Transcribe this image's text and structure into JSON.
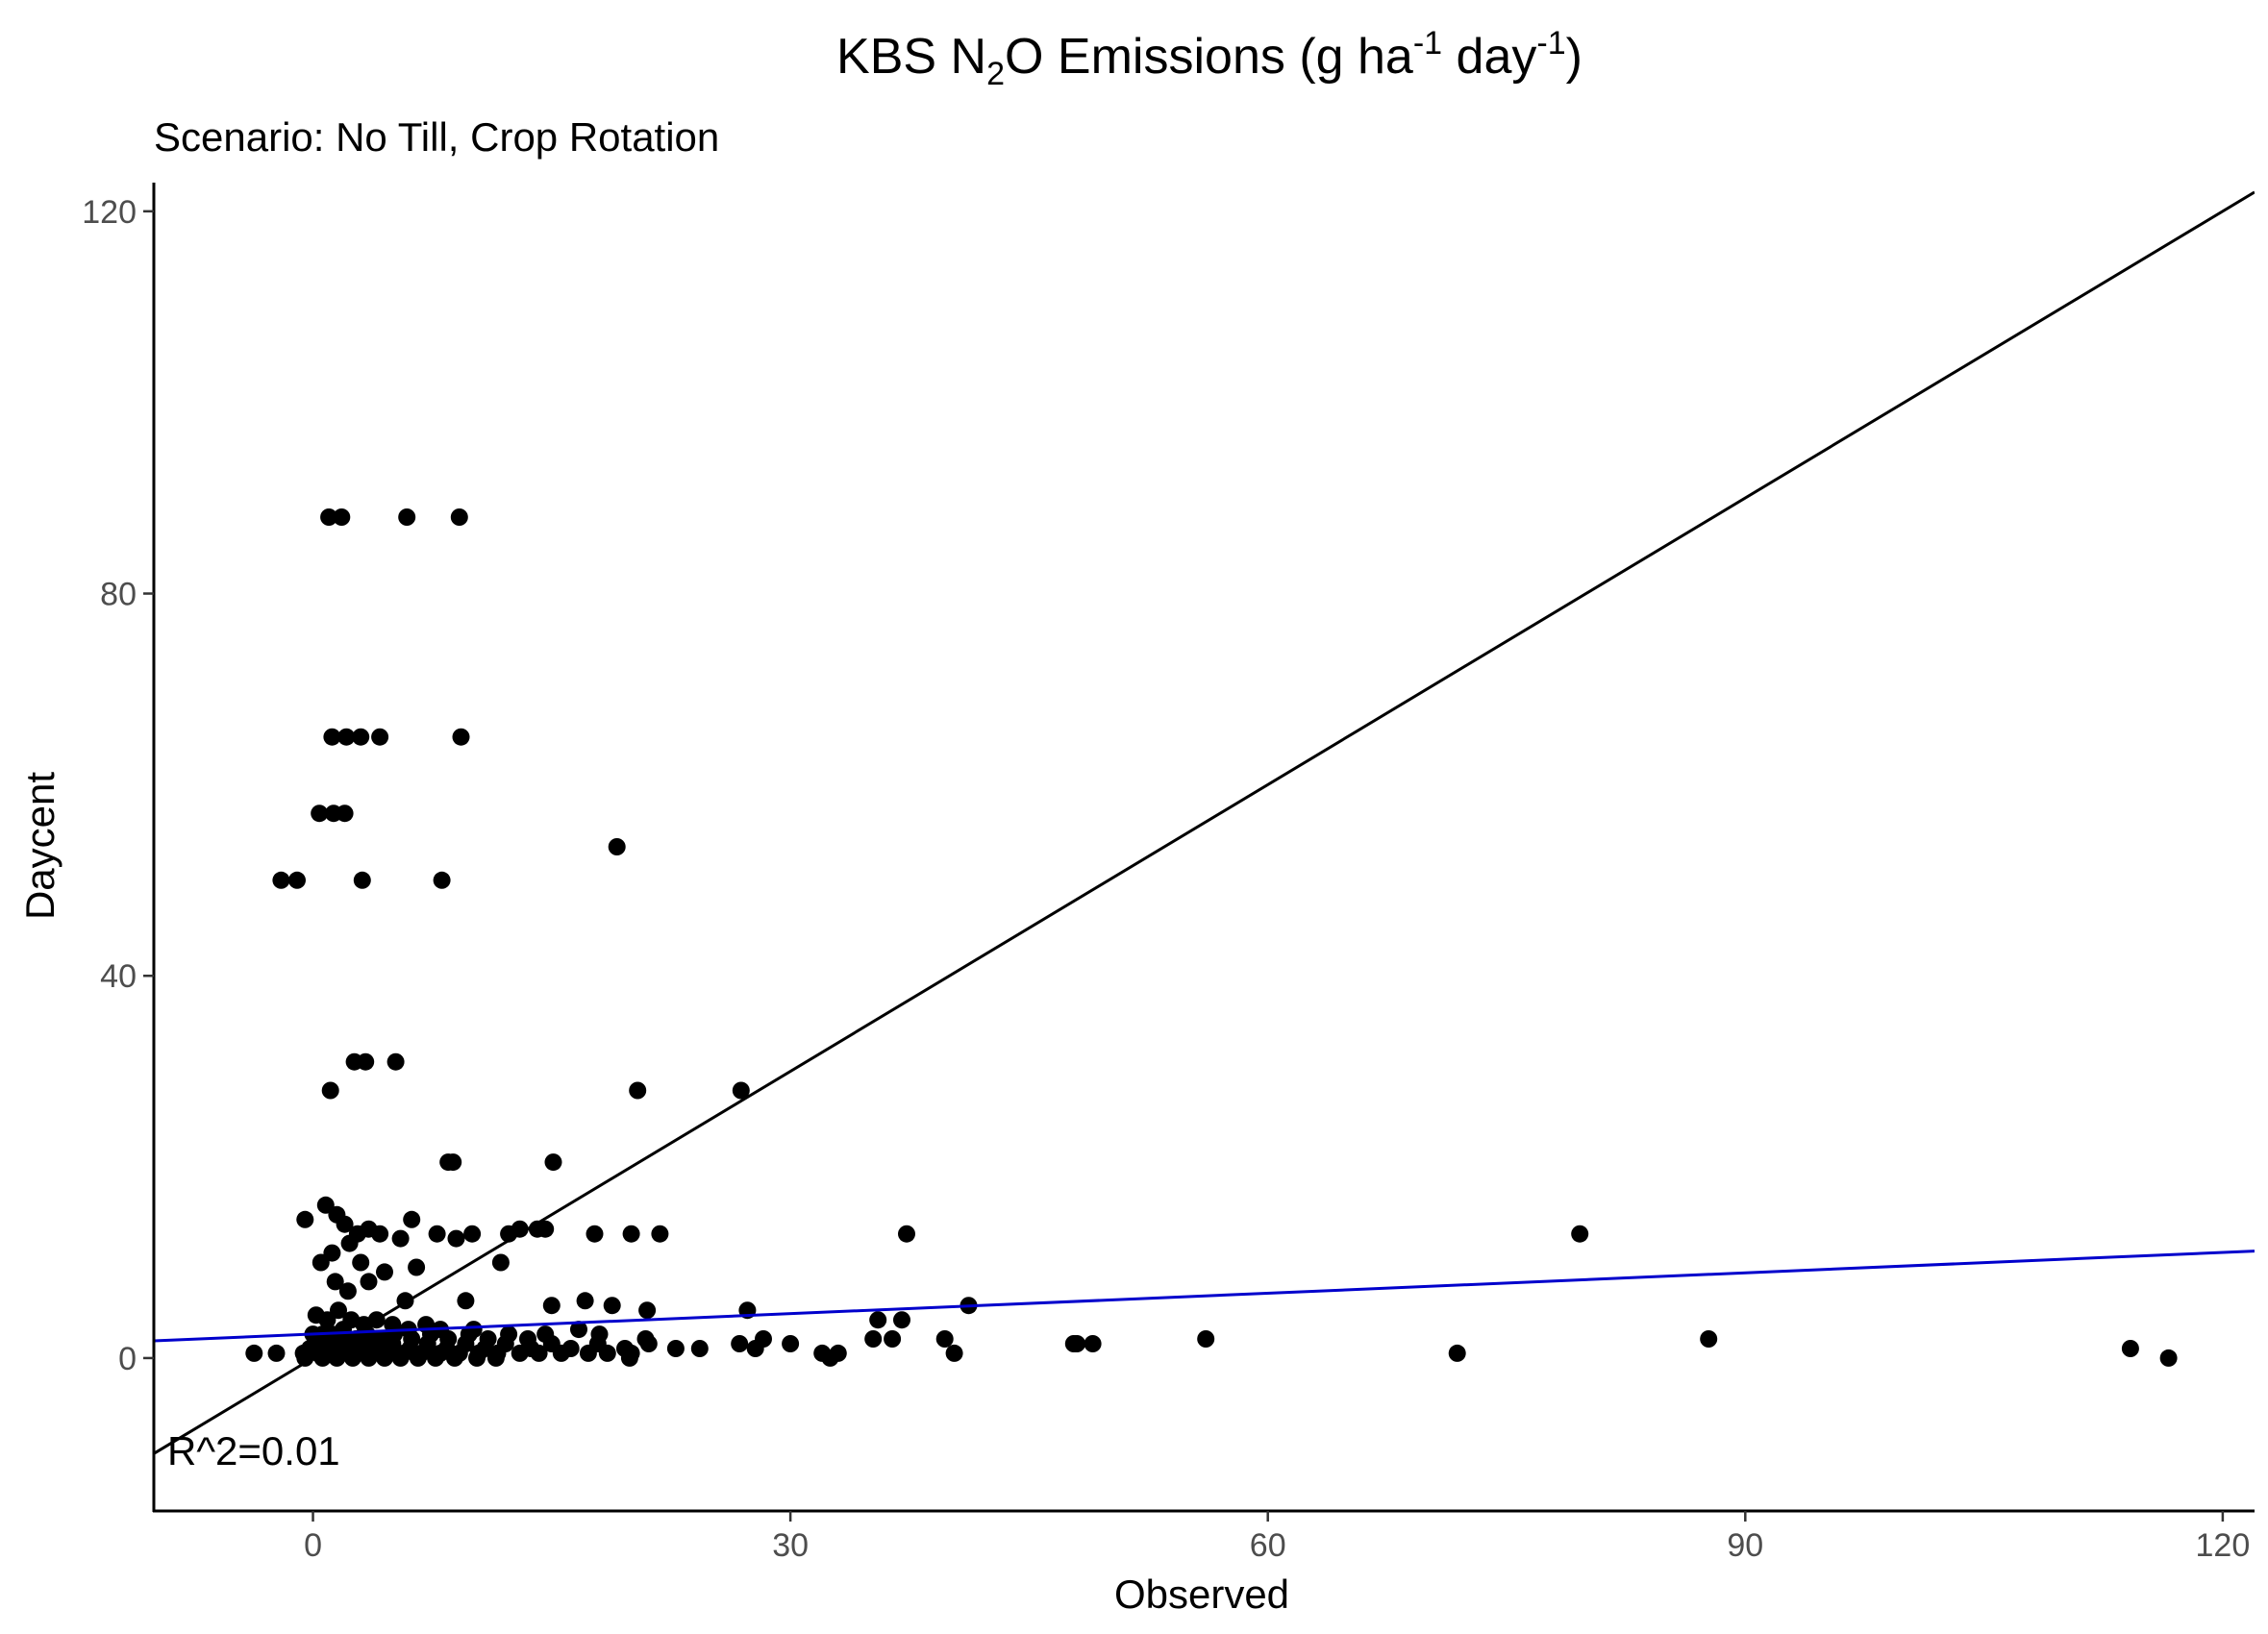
{
  "chart_data": {
    "type": "scatter",
    "title_parts": {
      "prefix": "KBS N",
      "sub": "2",
      "middle": "O Emissions (g ha",
      "sup1": "-1",
      "middle2": " day",
      "sup2": "-1",
      "suffix": ")"
    },
    "subtitle": "Scenario: No Till, Crop Rotation",
    "xlabel": "Observed",
    "ylabel": "Daycent",
    "xlim": [
      -10,
      122
    ],
    "ylim": [
      -16,
      123
    ],
    "x_ticks": [
      0,
      30,
      60,
      90,
      120
    ],
    "y_ticks": [
      0,
      40,
      80,
      120
    ],
    "grid": false,
    "annotation": "R^2=0.01",
    "series": [
      {
        "type": "points",
        "color": "#000000",
        "x": [
          1.0,
          1.8,
          5.9,
          9.2,
          1.2,
          2.1,
          3.0,
          4.2,
          9.3,
          0.4,
          1.3,
          2.0,
          -2.0,
          -1.0,
          3.1,
          8.1,
          19.1,
          1.1,
          2.6,
          3.3,
          5.2,
          20.4,
          26.9,
          8.5,
          8.8,
          15.1,
          -0.5,
          0.8,
          1.5,
          2.0,
          3.5,
          4.2,
          5.5,
          6.2,
          7.8,
          9.0,
          10.0,
          12.3,
          13.0,
          14.1,
          14.6,
          17.7,
          20.0,
          21.8,
          37.3,
          79.6,
          0.5,
          1.2,
          2.3,
          2.8,
          3.0,
          6.5,
          11.8,
          1.4,
          2.2,
          3.5,
          4.5,
          5.8,
          9.6,
          15.0,
          17.1,
          18.8,
          21.0,
          41.2,
          0.2,
          0.9,
          1.6,
          2.4,
          3.2,
          4.0,
          5.0,
          6.0,
          7.1,
          8.0,
          10.1,
          0.0,
          0.6,
          1.2,
          1.9,
          2.7,
          3.4,
          4.3,
          5.1,
          6.2,
          7.4,
          8.5,
          9.8,
          11.0,
          12.3,
          13.5,
          14.6,
          16.7,
          18.0,
          20.9,
          27.3,
          35.5,
          37.0,
          -0.2,
          0.5,
          1.1,
          1.8,
          2.5,
          3.3,
          4.1,
          5.0,
          6.1,
          7.2,
          8.4,
          9.6,
          10.8,
          12.1,
          13.7,
          15.0,
          16.2,
          17.9,
          19.6,
          21.1,
          26.8,
          28.3,
          30.0,
          35.2,
          36.4,
          39.7,
          48.0,
          49.0,
          56.1,
          87.7,
          -3.7,
          -2.3,
          -0.6,
          0.3,
          1.0,
          1.7,
          2.6,
          3.6,
          4.6,
          5.7,
          6.8,
          8.0,
          9.2,
          10.4,
          11.6,
          13.0,
          14.2,
          15.6,
          17.3,
          18.5,
          20.0,
          22.8,
          24.3,
          27.8,
          32.0,
          33.0,
          40.3,
          47.8,
          71.9,
          114.2,
          -0.5,
          0.6,
          1.5,
          2.5,
          3.5,
          4.5,
          5.5,
          6.6,
          7.7,
          8.9,
          10.3,
          11.5,
          19.9,
          32.5,
          116.6
        ],
        "y": [
          88,
          88,
          88,
          88,
          65,
          65,
          65,
          65,
          65,
          57,
          57,
          57,
          50,
          50,
          50,
          50,
          53.5,
          28,
          31,
          31,
          31,
          28,
          28,
          20.5,
          20.5,
          20.5,
          14.5,
          16,
          15,
          14,
          13.5,
          13,
          12.5,
          14.5,
          13,
          12.5,
          13,
          13,
          13.5,
          13.5,
          13.5,
          13,
          13,
          13,
          13,
          13,
          10,
          11,
          12,
          13,
          10,
          9.5,
          10,
          8,
          7,
          8,
          9,
          6,
          6,
          5.5,
          6,
          5.5,
          5,
          5.5,
          4.5,
          4,
          5,
          4,
          3.5,
          4,
          3.5,
          3,
          3.5,
          3,
          3,
          2.5,
          2.5,
          2.5,
          3,
          2,
          2.5,
          2,
          2.5,
          2,
          2.5,
          2,
          2.5,
          2,
          2.5,
          2,
          2.5,
          3,
          2.5,
          2,
          5,
          4,
          4,
          1,
          1.5,
          1,
          1.5,
          1,
          1.5,
          1,
          1.5,
          1,
          1.5,
          1,
          1.5,
          1,
          1.5,
          1,
          1.5,
          1,
          1.5,
          1,
          1.5,
          1.5,
          2,
          1.5,
          2,
          2,
          2,
          1.5,
          1.5,
          2,
          2,
          0.5,
          0.5,
          0.5,
          0.5,
          0.5,
          0.5,
          0.5,
          0.5,
          0.5,
          0.5,
          0.5,
          0.5,
          0.5,
          0.5,
          0.5,
          0.5,
          0.5,
          0.5,
          0.5,
          0.5,
          0.5,
          1,
          1,
          1,
          0.5,
          0.5,
          0.5,
          1.5,
          0.5,
          1,
          0,
          0,
          0,
          0,
          0,
          0,
          0,
          0,
          0,
          0,
          0,
          0,
          0,
          0,
          0
        ]
      },
      {
        "type": "line",
        "color": "#000000",
        "x": [
          -10,
          122
        ],
        "y": [
          -10,
          122
        ]
      },
      {
        "type": "line",
        "color": "#0000cc",
        "x": [
          -10,
          122
        ],
        "y": [
          1.8,
          11.2
        ]
      }
    ]
  }
}
